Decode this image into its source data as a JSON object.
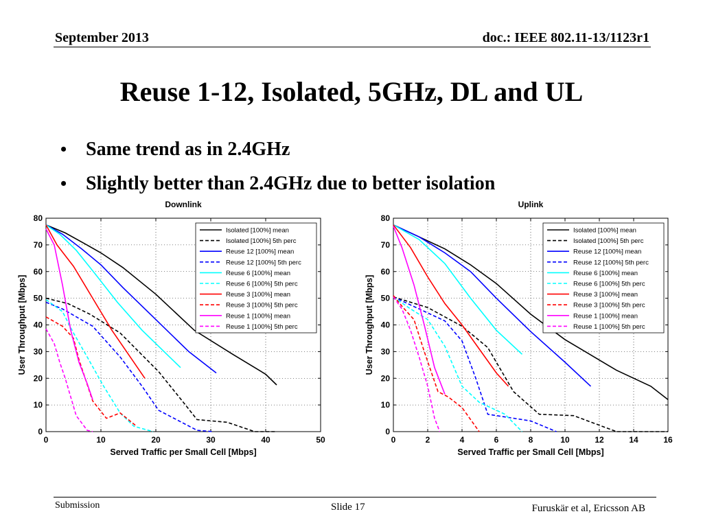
{
  "header": {
    "date": "September 2013",
    "doc": "doc.: IEEE 802.11-13/1123r1"
  },
  "title": "Reuse 1-12, Isolated, 5GHz, DL and UL",
  "bullets": [
    "Same trend as in 2.4GHz",
    "Slightly better than 2.4GHz due to better isolation"
  ],
  "footer": {
    "left": "Submission",
    "center": "Slide 17",
    "right": "Furuskär et al, Ericsson AB"
  },
  "chart_data": [
    {
      "type": "line",
      "title": "Downlink",
      "xlabel": "Served Traffic per Small Cell [Mbps]",
      "ylabel": "User Throughput [Mbps]",
      "xlim": [
        0,
        50
      ],
      "ylim": [
        0,
        80
      ],
      "xticks": [
        0,
        10,
        20,
        30,
        40,
        50
      ],
      "yticks": [
        0,
        10,
        20,
        30,
        40,
        50,
        60,
        70,
        80
      ],
      "grid": true,
      "legend_position": "top-right",
      "series": [
        {
          "name": "Isolated [100%] mean",
          "color": "#000000",
          "dashed": false,
          "x": [
            0,
            3.5,
            7,
            10,
            14,
            20,
            27,
            34,
            40,
            42
          ],
          "y": [
            77.5,
            74.5,
            70.5,
            67,
            61.5,
            51.5,
            38,
            29,
            21.5,
            17.5
          ]
        },
        {
          "name": "Isolated [100%] 5th perc",
          "color": "#000000",
          "dashed": true,
          "x": [
            0,
            4,
            8,
            13.5,
            20.5,
            25,
            27.5,
            33,
            38,
            42
          ],
          "y": [
            50,
            48,
            44,
            37,
            22.5,
            11,
            4.5,
            3.5,
            0,
            0
          ]
        },
        {
          "name": "Reuse 12 [100%] mean",
          "color": "#0000ff",
          "dashed": false,
          "x": [
            0,
            3,
            6.5,
            10,
            14,
            20,
            26,
            31
          ],
          "y": [
            77.5,
            74,
            68.5,
            62.5,
            54,
            42,
            30,
            22
          ]
        },
        {
          "name": "Reuse 12 [100%] 5th perc",
          "color": "#0000ff",
          "dashed": true,
          "x": [
            0,
            3,
            8.5,
            13.5,
            17.5,
            20.5,
            27.5,
            30.5
          ],
          "y": [
            48.5,
            46,
            39.5,
            28,
            17,
            8,
            0.5,
            0
          ]
        },
        {
          "name": "Reuse 6 [100%] mean",
          "color": "#00ffff",
          "dashed": false,
          "x": [
            0,
            2.5,
            5.5,
            9,
            13,
            17.5,
            21.5,
            24.5
          ],
          "y": [
            77.5,
            74,
            68,
            59,
            48.5,
            38,
            30,
            24
          ]
        },
        {
          "name": "Reuse 6 [100%] 5th perc",
          "color": "#00ffff",
          "dashed": true,
          "x": [
            0,
            3,
            5,
            7.5,
            10.5,
            13.5,
            16,
            19.5
          ],
          "y": [
            49.5,
            45,
            37,
            28,
            17,
            7,
            2,
            0
          ]
        },
        {
          "name": "Reuse 3 [100%] mean",
          "color": "#ff0000",
          "dashed": false,
          "x": [
            0,
            2,
            5,
            8.5,
            12,
            15,
            18
          ],
          "y": [
            77.5,
            70,
            62,
            50,
            38,
            29,
            20
          ]
        },
        {
          "name": "Reuse 3 [100%] 5th perc",
          "color": "#ff0000",
          "dashed": true,
          "x": [
            0,
            3,
            5,
            6,
            8.5,
            11,
            13.5,
            16.5
          ],
          "y": [
            43,
            39.5,
            35,
            27,
            11.5,
            5,
            7,
            2
          ]
        },
        {
          "name": "Reuse 1 [100%] mean",
          "color": "#ff00ff",
          "dashed": false,
          "x": [
            0,
            1.5,
            3,
            4.5,
            6,
            7.5,
            8.5
          ],
          "y": [
            76,
            70,
            55,
            38,
            26,
            18,
            12
          ]
        },
        {
          "name": "Reuse 1 [100%] 5th perc",
          "color": "#ff00ff",
          "dashed": true,
          "x": [
            0,
            1.5,
            2.5,
            3.5,
            5.5,
            7.5,
            8.5
          ],
          "y": [
            38.5,
            33,
            26,
            20,
            6,
            0.5,
            0
          ]
        }
      ]
    },
    {
      "type": "line",
      "title": "Uplink",
      "xlabel": "Served Traffic per Small Cell [Mbps]",
      "ylabel": "User Throughput [Mbps]",
      "xlim": [
        0,
        16
      ],
      "ylim": [
        0,
        80
      ],
      "xticks": [
        0,
        2,
        4,
        6,
        8,
        10,
        12,
        14,
        16
      ],
      "yticks": [
        0,
        10,
        20,
        30,
        40,
        50,
        60,
        70,
        80
      ],
      "grid": true,
      "legend_position": "top-right",
      "series": [
        {
          "name": "Isolated [100%] mean",
          "color": "#000000",
          "dashed": false,
          "x": [
            0,
            1.5,
            3,
            4.5,
            6,
            8,
            10,
            13,
            15,
            16
          ],
          "y": [
            77.5,
            73,
            68.5,
            62.5,
            55.5,
            44,
            34.5,
            23,
            17,
            12
          ]
        },
        {
          "name": "Isolated [100%] 5th perc",
          "color": "#000000",
          "dashed": true,
          "x": [
            0,
            2,
            4,
            5.5,
            7,
            8.5,
            10.5,
            13,
            16
          ],
          "y": [
            50.5,
            46.5,
            39.5,
            31.5,
            15,
            6.5,
            6,
            0,
            0
          ]
        },
        {
          "name": "Reuse 12 [100%] mean",
          "color": "#0000ff",
          "dashed": false,
          "x": [
            0,
            1.5,
            3,
            4.5,
            6,
            8,
            10,
            11.5
          ],
          "y": [
            77.5,
            73,
            67,
            60,
            50,
            37.5,
            26,
            17
          ]
        },
        {
          "name": "Reuse 12 [100%] 5th perc",
          "color": "#0000ff",
          "dashed": true,
          "x": [
            0,
            1.5,
            3,
            4,
            4.8,
            5.5,
            6.5,
            8,
            9.5
          ],
          "y": [
            50.5,
            46,
            41.5,
            34,
            20,
            6.5,
            5.5,
            4,
            0
          ]
        },
        {
          "name": "Reuse 6 [100%] mean",
          "color": "#00ffff",
          "dashed": false,
          "x": [
            0,
            1.5,
            3,
            4.5,
            6,
            7.5
          ],
          "y": [
            77.5,
            72,
            63,
            50,
            38,
            29
          ]
        },
        {
          "name": "Reuse 6 [100%] 5th perc",
          "color": "#00ffff",
          "dashed": true,
          "x": [
            0,
            1,
            2,
            3,
            4,
            5,
            6.5,
            7.5
          ],
          "y": [
            50.5,
            46,
            42,
            32,
            17,
            11,
            6.5,
            0
          ]
        },
        {
          "name": "Reuse 3 [100%] mean",
          "color": "#ff0000",
          "dashed": false,
          "x": [
            0,
            1,
            2,
            3,
            4,
            5,
            6,
            6.7
          ],
          "y": [
            77.5,
            69,
            58,
            48,
            40,
            31,
            22,
            17
          ]
        },
        {
          "name": "Reuse 3 [100%] 5th perc",
          "color": "#ff0000",
          "dashed": true,
          "x": [
            0,
            0.5,
            1.2,
            1.8,
            2.6,
            3.2,
            4,
            5
          ],
          "y": [
            51,
            47,
            42,
            30,
            15,
            13,
            9,
            0
          ]
        },
        {
          "name": "Reuse 1 [100%] mean",
          "color": "#ff00ff",
          "dashed": false,
          "x": [
            0,
            0.5,
            1.2,
            1.8,
            2.4,
            3
          ],
          "y": [
            77,
            69,
            55,
            40,
            24,
            14
          ]
        },
        {
          "name": "Reuse 1 [100%] 5th perc",
          "color": "#ff00ff",
          "dashed": true,
          "x": [
            0,
            0.5,
            1,
            1.5,
            2,
            2.4,
            2.7
          ],
          "y": [
            50.5,
            46,
            38,
            28,
            17,
            5,
            0
          ]
        }
      ]
    }
  ]
}
